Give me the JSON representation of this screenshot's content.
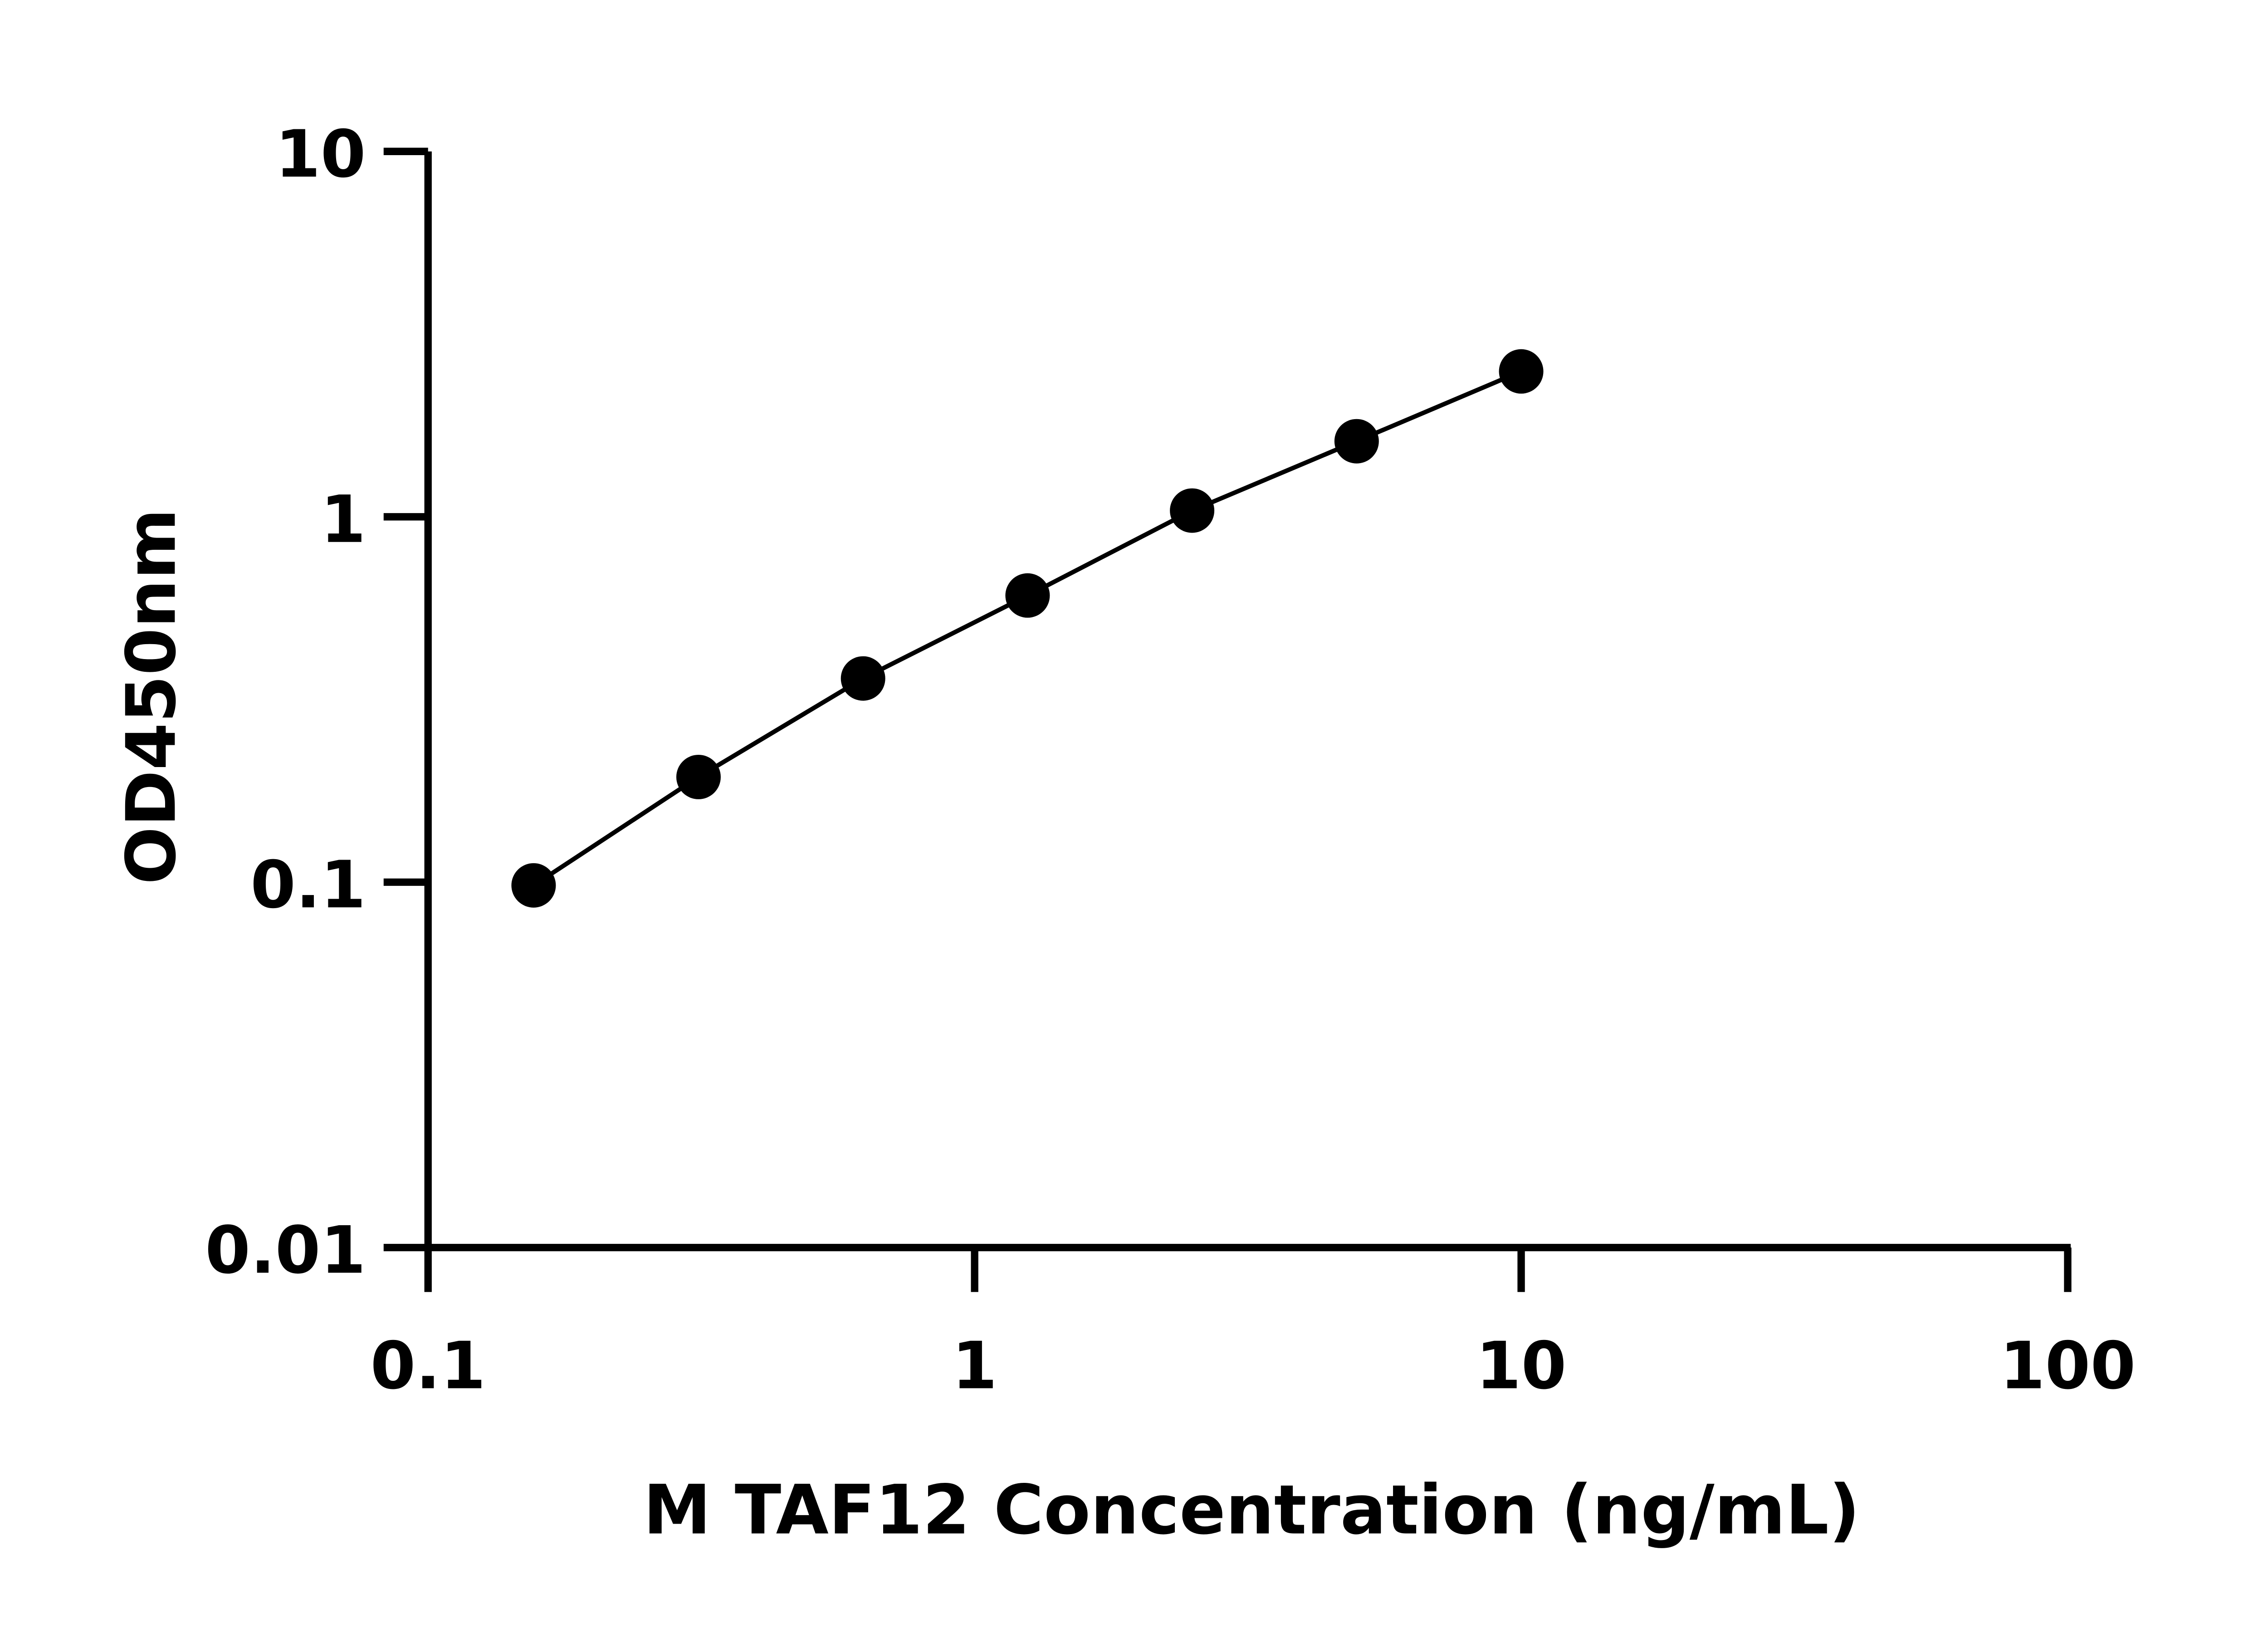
{
  "chart_data": {
    "type": "scatter",
    "title": "",
    "xlabel": "M TAF12 Concentration (ng/mL)",
    "ylabel": "OD450nm",
    "x_scale": "log",
    "y_scale": "log",
    "xlim": [
      0.1,
      100
    ],
    "ylim": [
      0.01,
      10
    ],
    "x_ticks": [
      "0.1",
      "1",
      "10",
      "100"
    ],
    "y_ticks": [
      "0.01",
      "0.1",
      "1",
      "10"
    ],
    "grid": false,
    "legend": "none",
    "marker_color": "#000000",
    "line_color": "#000000",
    "series": [
      {
        "x": [
          0.156,
          0.3125,
          0.625,
          1.25,
          2.5,
          5,
          10
        ],
        "y": [
          0.098,
          0.194,
          0.361,
          0.609,
          1.04,
          1.61,
          2.5
        ]
      }
    ]
  }
}
